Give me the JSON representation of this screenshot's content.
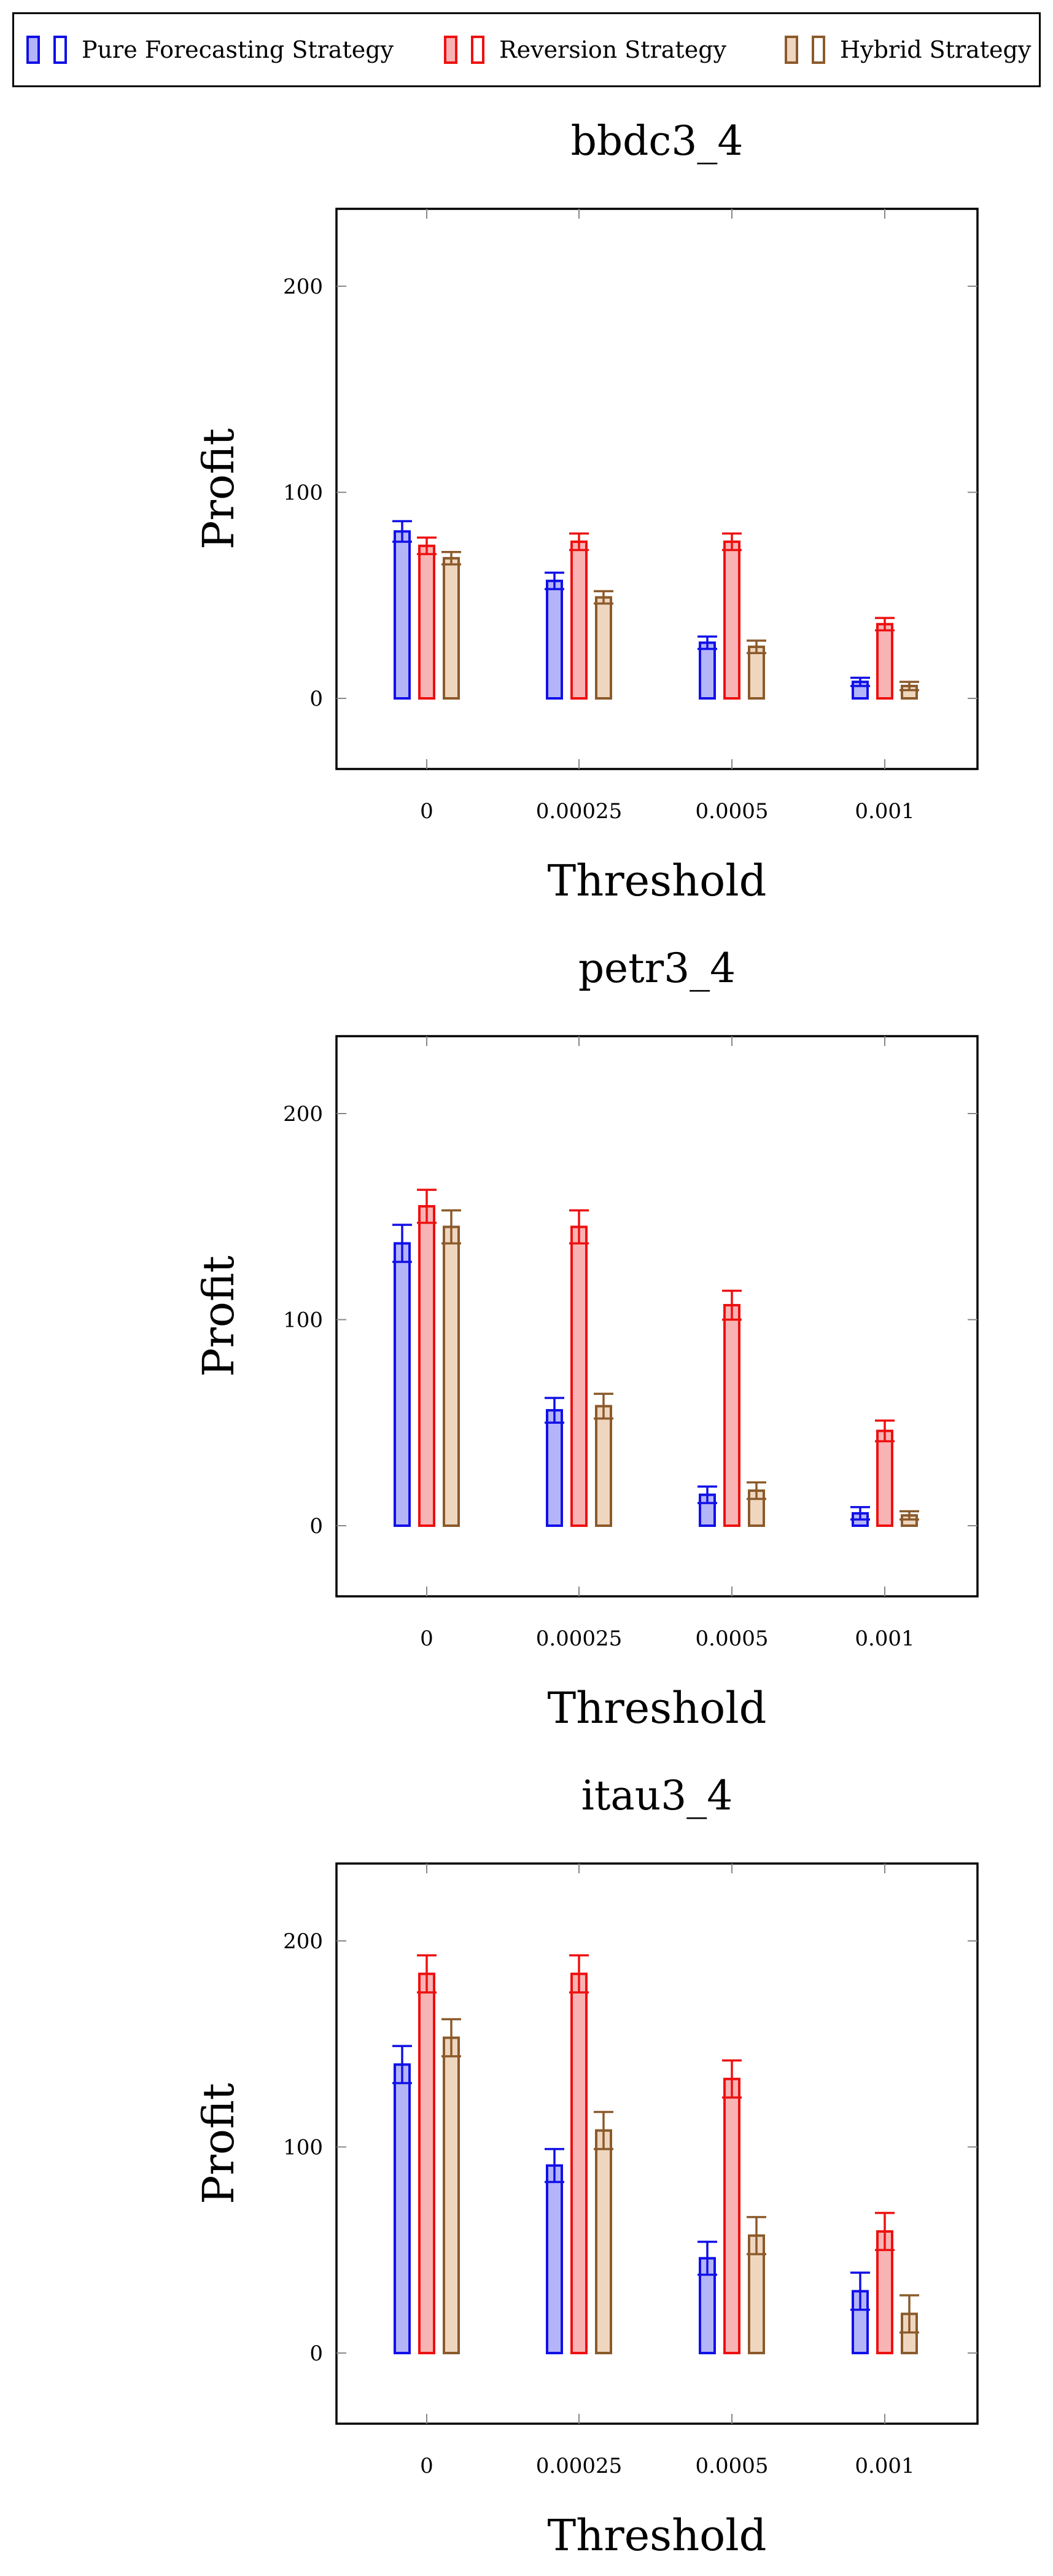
{
  "legend": [
    {
      "label": "Pure Forecasting Strategy",
      "stroke": "#1010e8",
      "fill": "#b4b4f8"
    },
    {
      "label": "Reversion Strategy",
      "stroke": "#ee1010",
      "fill": "#f8b4b4"
    },
    {
      "label": "Hybrid Strategy",
      "stroke": "#8b5a2b",
      "fill": "#efd6bf"
    }
  ],
  "chart_data": [
    {
      "type": "bar",
      "title": "bbdc3_4",
      "xlabel": "Threshold",
      "ylabel": "Profit",
      "categories": [
        "0",
        "0.00025",
        "0.0005",
        "0.001"
      ],
      "ylim": [
        -34,
        240
      ],
      "yticks": [
        0,
        100,
        200
      ],
      "series": [
        {
          "name": "Pure Forecasting Strategy",
          "values": [
            81,
            57,
            27,
            8
          ],
          "errors": [
            5,
            4,
            3,
            2
          ]
        },
        {
          "name": "Reversion Strategy",
          "values": [
            74,
            76,
            76,
            36
          ],
          "errors": [
            4,
            4,
            4,
            3
          ]
        },
        {
          "name": "Hybrid Strategy",
          "values": [
            68,
            49,
            25,
            6
          ],
          "errors": [
            3,
            3,
            3,
            2
          ]
        }
      ]
    },
    {
      "type": "bar",
      "title": "petr3_4",
      "xlabel": "Threshold",
      "ylabel": "Profit",
      "categories": [
        "0",
        "0.00025",
        "0.0005",
        "0.001"
      ],
      "ylim": [
        -34,
        240
      ],
      "yticks": [
        0,
        100,
        200
      ],
      "series": [
        {
          "name": "Pure Forecasting Strategy",
          "values": [
            137,
            56,
            15,
            6
          ],
          "errors": [
            9,
            6,
            4,
            3
          ]
        },
        {
          "name": "Reversion Strategy",
          "values": [
            155,
            145,
            107,
            46
          ],
          "errors": [
            8,
            8,
            7,
            5
          ]
        },
        {
          "name": "Hybrid Strategy",
          "values": [
            145,
            58,
            17,
            5
          ],
          "errors": [
            8,
            6,
            4,
            2
          ]
        }
      ]
    },
    {
      "type": "bar",
      "title": "itau3_4",
      "xlabel": "Threshold",
      "ylabel": "Profit",
      "categories": [
        "0",
        "0.00025",
        "0.0005",
        "0.001"
      ],
      "ylim": [
        -34,
        240
      ],
      "yticks": [
        0,
        100,
        200
      ],
      "series": [
        {
          "name": "Pure Forecasting Strategy",
          "values": [
            140,
            91,
            46,
            30
          ],
          "errors": [
            9,
            8,
            8,
            9
          ]
        },
        {
          "name": "Reversion Strategy",
          "values": [
            184,
            184,
            133,
            59
          ],
          "errors": [
            9,
            9,
            9,
            9
          ]
        },
        {
          "name": "Hybrid Strategy",
          "values": [
            153,
            108,
            57,
            19
          ],
          "errors": [
            9,
            9,
            9,
            9
          ]
        }
      ]
    }
  ]
}
